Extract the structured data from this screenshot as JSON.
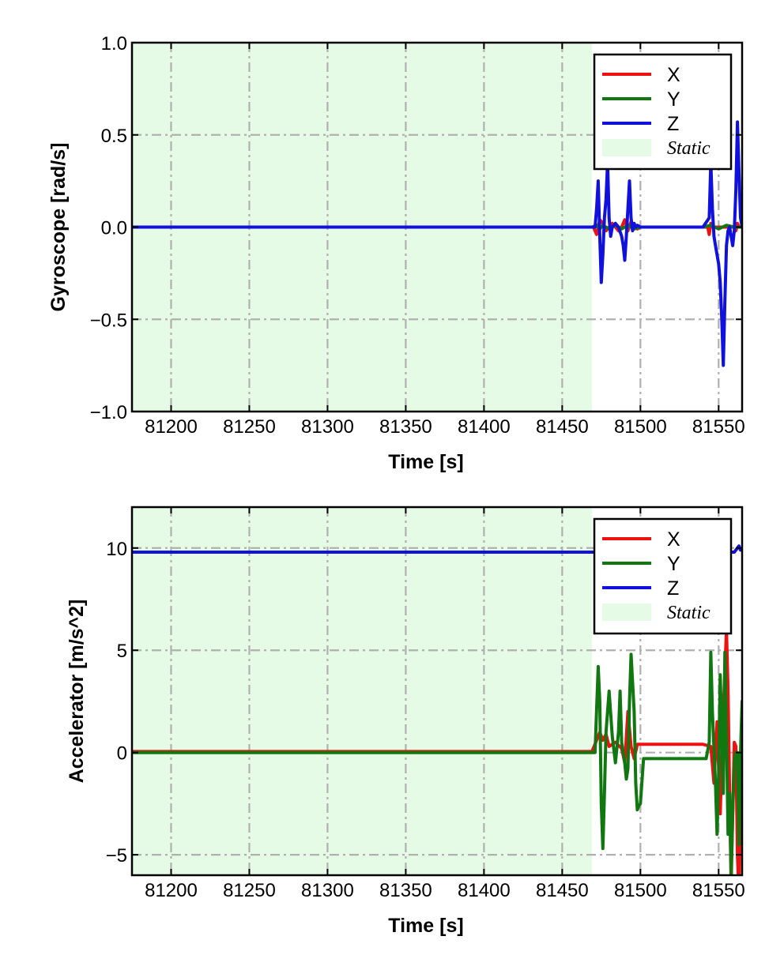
{
  "figure": {
    "background": "#ffffff"
  },
  "chart_data": [
    {
      "type": "line",
      "id": "gyro",
      "xlabel": "Time [s]",
      "ylabel": "Gyroscope [rad/s]",
      "xlim": [
        81175,
        81565
      ],
      "ylim": [
        -1.0,
        1.0
      ],
      "xticks": [
        81200,
        81250,
        81300,
        81350,
        81400,
        81450,
        81500,
        81550
      ],
      "xtick_labels": [
        "81200",
        "81250",
        "81300",
        "81350",
        "81400",
        "81450",
        "81500",
        "81550"
      ],
      "yticks": [
        -1.0,
        -0.5,
        0.0,
        0.5,
        1.0
      ],
      "ytick_labels": [
        "−1.0",
        "−0.5",
        "0.0",
        "0.5",
        "1.0"
      ],
      "grid": true,
      "legend_position": "top-right",
      "static_region": {
        "label": "Static",
        "x_range": [
          81175,
          81469
        ],
        "color": "#e6fbe6"
      },
      "series": [
        {
          "name": "X",
          "color": "#ee1111",
          "x": [
            81175,
            81469,
            81470,
            81472,
            81474,
            81476,
            81478,
            81480,
            81482,
            81484,
            81486,
            81488,
            81490,
            81492,
            81494,
            81496,
            81498,
            81500,
            81520,
            81540,
            81543,
            81544,
            81545,
            81546,
            81550,
            81555,
            81560,
            81561,
            81562,
            81563,
            81565
          ],
          "y": [
            0,
            0,
            0,
            -0.04,
            0.04,
            0.02,
            -0.02,
            0.0,
            0.02,
            0.0,
            -0.02,
            0.0,
            0.04,
            -0.02,
            0.03,
            0.0,
            -0.01,
            0,
            0,
            0,
            0,
            -0.04,
            0.02,
            0,
            0,
            0,
            0,
            -0.02,
            0.02,
            0,
            0
          ]
        },
        {
          "name": "Y",
          "color": "#117711",
          "x": [
            81175,
            81469,
            81472,
            81474,
            81476,
            81480,
            81484,
            81488,
            81492,
            81496,
            81500,
            81540,
            81545,
            81550,
            81555,
            81560,
            81565
          ],
          "y": [
            0,
            0,
            0.01,
            -0.01,
            0.01,
            -0.01,
            0.01,
            -0.01,
            0.01,
            -0.01,
            0,
            0,
            0.01,
            -0.01,
            0.01,
            0.0,
            0
          ]
        },
        {
          "name": "Z",
          "color": "#1111dd",
          "x": [
            81175,
            81469,
            81471,
            81472,
            81473,
            81474,
            81475,
            81476,
            81477,
            81478,
            81479,
            81480,
            81481,
            81482,
            81484,
            81486,
            81488,
            81489,
            81490,
            81491,
            81492,
            81493,
            81494,
            81495,
            81496,
            81497,
            81498,
            81500,
            81520,
            81540,
            81544,
            81545,
            81546,
            81547,
            81548,
            81549,
            81550,
            81551,
            81552,
            81553,
            81554,
            81555,
            81556,
            81557,
            81558,
            81559,
            81560,
            81561,
            81562,
            81563,
            81564,
            81565
          ],
          "y": [
            0,
            0,
            0,
            0.1,
            0.25,
            -0.05,
            -0.3,
            -0.15,
            0.05,
            0.15,
            0.35,
            0.05,
            -0.05,
            0.0,
            0.02,
            0.0,
            -0.05,
            -0.1,
            -0.18,
            -0.05,
            0.1,
            0.25,
            0.05,
            -0.02,
            0.02,
            0.0,
            0.01,
            0,
            0,
            0,
            0.05,
            0.35,
            0.1,
            -0.05,
            -0.1,
            -0.15,
            -0.2,
            -0.3,
            -0.5,
            -0.75,
            -0.4,
            -0.1,
            -0.02,
            0.0,
            -0.05,
            -0.1,
            -0.02,
            0.2,
            0.57,
            0.3,
            0.05,
            0
          ]
        }
      ]
    },
    {
      "type": "line",
      "id": "accel",
      "xlabel": "Time [s]",
      "ylabel": "Accelerator [m/s^2]",
      "xlim": [
        81175,
        81565
      ],
      "ylim": [
        -6.0,
        12.0
      ],
      "xticks": [
        81200,
        81250,
        81300,
        81350,
        81400,
        81450,
        81500,
        81550
      ],
      "xtick_labels": [
        "81200",
        "81250",
        "81300",
        "81350",
        "81400",
        "81450",
        "81500",
        "81550"
      ],
      "yticks": [
        -5,
        0,
        5,
        10
      ],
      "ytick_labels": [
        "−5",
        "0",
        "5",
        "10"
      ],
      "grid": true,
      "legend_position": "top-right",
      "static_region": {
        "label": "Static",
        "x_range": [
          81175,
          81469
        ],
        "color": "#e6fbe6"
      },
      "series": [
        {
          "name": "X",
          "color": "#ee1111",
          "x": [
            81175,
            81469,
            81472,
            81474,
            81476,
            81478,
            81480,
            81484,
            81488,
            81490,
            81492,
            81494,
            81496,
            81498,
            81500,
            81520,
            81540,
            81545,
            81547,
            81549,
            81551,
            81553,
            81555,
            81556,
            81557,
            81558,
            81559,
            81560,
            81561,
            81562,
            81563,
            81564,
            81565
          ],
          "y": [
            0.05,
            0.05,
            0.6,
            1.0,
            0.6,
            0.9,
            0.3,
            0.5,
            0.2,
            -0.5,
            2.0,
            0.3,
            -0.3,
            0.4,
            0.4,
            0.4,
            0.4,
            0.3,
            -1.5,
            1.5,
            -3.0,
            2.0,
            6.0,
            3.0,
            -2.0,
            -6.5,
            -3.0,
            0.5,
            0.3,
            -5.0,
            -7.0,
            -2.0,
            0.5
          ]
        },
        {
          "name": "Y",
          "color": "#117711",
          "x": [
            81175,
            81469,
            81471,
            81473,
            81474,
            81475,
            81476,
            81477,
            81478,
            81480,
            81482,
            81484,
            81486,
            81487,
            81488,
            81490,
            81491,
            81492,
            81493,
            81494,
            81496,
            81497,
            81498,
            81499,
            81500,
            81502,
            81504,
            81506,
            81540,
            81542,
            81544,
            81545,
            81546,
            81548,
            81549,
            81550,
            81551,
            81552,
            81553,
            81554,
            81555,
            81556,
            81557,
            81558,
            81559,
            81560,
            81561,
            81562,
            81563,
            81564,
            81565
          ],
          "y": [
            0,
            0,
            0,
            4.2,
            2.5,
            -2.5,
            -4.7,
            -2.0,
            1.0,
            3.0,
            0.8,
            -0.5,
            1.0,
            3.0,
            0.5,
            -0.5,
            -1.3,
            -0.8,
            2.5,
            4.8,
            2.0,
            -1.5,
            -2.8,
            -2.6,
            -2.5,
            -0.3,
            -0.3,
            -0.3,
            -0.3,
            -0.3,
            0.5,
            4.9,
            2.0,
            -1.5,
            -4.0,
            -1.0,
            3.8,
            1.0,
            -2.0,
            4.9,
            1.0,
            -4.0,
            -2.0,
            -6.0,
            -3.0,
            -0.5,
            0.0,
            0.0,
            -4.5,
            0.0,
            2.5
          ]
        },
        {
          "name": "Z",
          "color": "#1111dd",
          "x": [
            81175,
            81469,
            81540,
            81560,
            81561,
            81562,
            81563,
            81564,
            81565
          ],
          "y": [
            9.8,
            9.8,
            9.8,
            9.8,
            9.9,
            10.0,
            10.1,
            9.9,
            9.9
          ]
        }
      ]
    }
  ]
}
